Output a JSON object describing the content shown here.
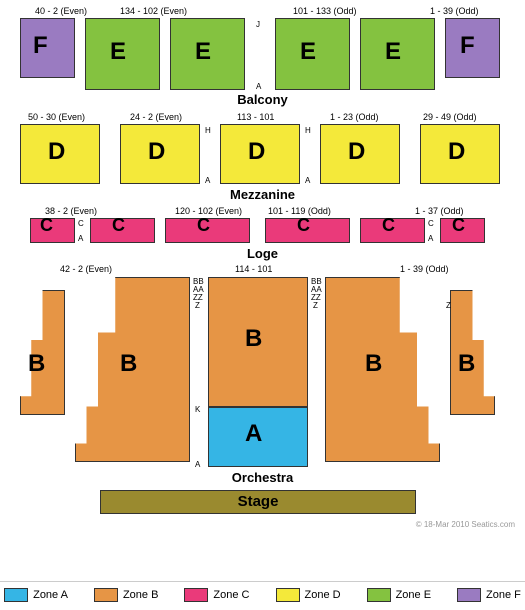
{
  "colors": {
    "zoneA": "#35b5e5",
    "zoneB": "#e69545",
    "zoneC": "#ea3a7a",
    "zoneD": "#f4e93a",
    "zoneE": "#84c240",
    "zoneF": "#9a7bc1",
    "stage": "#9a8a2f",
    "border": "#333333",
    "text": "#000000"
  },
  "levels": {
    "balcony": "Balcony",
    "mezzanine": "Mezzanine",
    "loge": "Loge",
    "orchestra": "Orchestra"
  },
  "stage_label": "Stage",
  "copyright": "© 18-Mar 2010 Seatics.com",
  "legend": [
    {
      "label": "Zone A",
      "colorKey": "zoneA"
    },
    {
      "label": "Zone B",
      "colorKey": "zoneB"
    },
    {
      "label": "Zone C",
      "colorKey": "zoneC"
    },
    {
      "label": "Zone D",
      "colorKey": "zoneD"
    },
    {
      "label": "Zone E",
      "colorKey": "zoneE"
    },
    {
      "label": "Zone F",
      "colorKey": "zoneF"
    }
  ],
  "ranges": {
    "balcony_f_left": "40 - 2 (Even)",
    "balcony_e_left": "134 - 102 (Even)",
    "balcony_e_right": "101 - 133 (Odd)",
    "balcony_f_right": "1 - 39 (Odd)",
    "mezz_d1": "50 - 30 (Even)",
    "mezz_d2": "24 - 2 (Even)",
    "mezz_d3": "113 - 101",
    "mezz_d4": "1 - 23 (Odd)",
    "mezz_d5": "29 - 49 (Odd)",
    "loge_c_left": "38 - 2 (Even)",
    "loge_c_mid_l": "120 - 102 (Even)",
    "loge_c_mid_r": "101 - 119 (Odd)",
    "loge_c_right": "1 - 37 (Odd)",
    "orch_left": "42 - 2 (Even)",
    "orch_mid": "114 - 101",
    "orch_right": "1 - 39 (Odd)"
  },
  "letters": {
    "F": "F",
    "E": "E",
    "D": "D",
    "C": "C",
    "B": "B",
    "A": "A"
  },
  "row_markers": {
    "J": "J",
    "A": "A",
    "H": "H",
    "C": "C",
    "BB": "BB",
    "AA": "AA",
    "ZZ": "ZZ",
    "Z": "Z",
    "K": "K"
  }
}
